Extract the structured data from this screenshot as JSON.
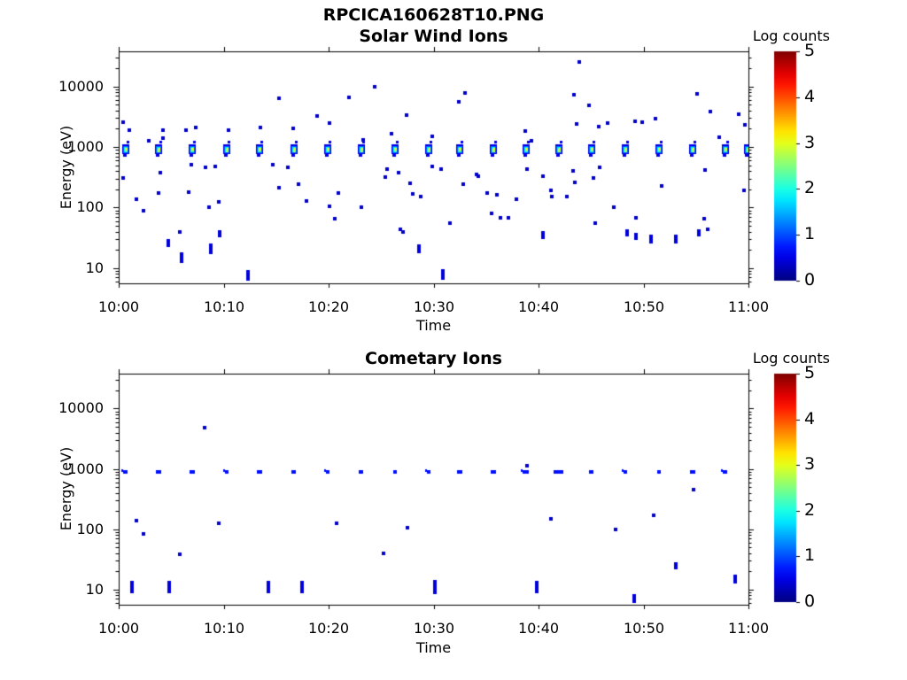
{
  "figure": {
    "title": "RPCICA160628T10.PNG",
    "background": "#ffffff"
  },
  "colors": {
    "frame": "#000000",
    "text": "#000000",
    "dot_default": "#0000c8",
    "colormap_low": "#00007f",
    "colormap_high": "#7f0000"
  },
  "chart_data": [
    {
      "type": "heatmap",
      "title": "Solar Wind Ions",
      "xlabel": "Time",
      "ylabel": "Energy (eV)",
      "xtick_labels": [
        "10:00",
        "10:10",
        "10:20",
        "10:30",
        "10:40",
        "10:50",
        "11:00"
      ],
      "xlim_minutes": [
        0,
        60
      ],
      "ytick_labels": [
        "10",
        "100",
        "1000",
        "10000"
      ],
      "ytick_values": [
        10,
        100,
        1000,
        10000
      ],
      "ylim_eV": [
        5.6,
        38000
      ],
      "yscale": "log",
      "colorbar": {
        "title": "Log counts",
        "tick_labels": [
          "0",
          "1",
          "2",
          "3",
          "4",
          "5"
        ],
        "lim": [
          0,
          5
        ],
        "colormap": "jet"
      },
      "ion_beam_clusters": {
        "comment": "periodic solar-wind proton beam blobs near 1 keV, one per ~3.2 min instrument cycle",
        "energy_eV": 950,
        "core_log_counts": 2.7,
        "halo_log_counts": 0.5,
        "times_min": [
          0.7,
          3.8,
          7.0,
          10.3,
          13.4,
          16.7,
          19.9,
          23.1,
          26.3,
          29.5,
          32.5,
          35.7,
          38.8,
          41.9,
          45.1,
          48.3,
          51.5,
          54.7,
          57.8,
          59.9
        ]
      },
      "scatter_log_counts": 0.35,
      "scatter_points_t_eV": [
        [
          0.4,
          2600
        ],
        [
          1.0,
          1900
        ],
        [
          2.9,
          1250
        ],
        [
          4.2,
          1900
        ],
        [
          4.2,
          1400
        ],
        [
          6.4,
          1900
        ],
        [
          7.3,
          2100
        ],
        [
          10.5,
          1900
        ],
        [
          13.5,
          2100
        ],
        [
          15.3,
          6300
        ],
        [
          16.6,
          2000
        ],
        [
          18.9,
          3300
        ],
        [
          20.1,
          2500
        ],
        [
          21.9,
          6700
        ],
        [
          23.3,
          1300
        ],
        [
          24.4,
          9800
        ],
        [
          26.0,
          1650
        ],
        [
          27.4,
          3400
        ],
        [
          29.9,
          1500
        ],
        [
          32.4,
          5600
        ],
        [
          33.0,
          7900
        ],
        [
          38.7,
          1860
        ],
        [
          39.3,
          1280
        ],
        [
          43.4,
          7400
        ],
        [
          43.6,
          2400
        ],
        [
          43.9,
          25500
        ],
        [
          44.8,
          4900
        ],
        [
          45.7,
          2150
        ],
        [
          46.6,
          2500
        ],
        [
          49.2,
          2700
        ],
        [
          49.9,
          2600
        ],
        [
          51.1,
          2900
        ],
        [
          55.1,
          7600
        ],
        [
          56.4,
          3900
        ],
        [
          57.2,
          1460
        ],
        [
          59.1,
          3500
        ],
        [
          59.7,
          2300
        ],
        [
          0.4,
          310
        ],
        [
          1.7,
          138
        ],
        [
          2.4,
          89
        ],
        [
          3.8,
          175
        ],
        [
          4.0,
          380
        ],
        [
          5.8,
          40
        ],
        [
          6.7,
          180
        ],
        [
          6.9,
          515
        ],
        [
          8.3,
          460
        ],
        [
          8.6,
          100
        ],
        [
          9.2,
          470
        ],
        [
          9.5,
          125
        ],
        [
          14.7,
          505
        ],
        [
          15.3,
          215
        ],
        [
          16.1,
          460
        ],
        [
          17.1,
          245
        ],
        [
          17.9,
          130
        ],
        [
          20.1,
          105
        ],
        [
          20.6,
          65
        ],
        [
          20.9,
          175
        ],
        [
          23.1,
          100
        ],
        [
          25.4,
          320
        ],
        [
          25.6,
          430
        ],
        [
          26.7,
          380
        ],
        [
          26.8,
          43
        ],
        [
          27.1,
          40
        ],
        [
          27.8,
          250
        ],
        [
          28.0,
          170
        ],
        [
          28.8,
          150
        ],
        [
          29.9,
          470
        ],
        [
          30.7,
          430
        ],
        [
          31.6,
          56
        ],
        [
          32.8,
          245
        ],
        [
          34.1,
          350
        ],
        [
          34.3,
          330
        ],
        [
          35.1,
          175
        ],
        [
          35.5,
          80
        ],
        [
          36.0,
          165
        ],
        [
          36.4,
          67
        ],
        [
          37.1,
          67
        ],
        [
          37.9,
          138
        ],
        [
          38.9,
          430
        ],
        [
          40.4,
          330
        ],
        [
          41.2,
          190
        ],
        [
          41.3,
          150
        ],
        [
          42.7,
          150
        ],
        [
          43.3,
          400
        ],
        [
          43.5,
          260
        ],
        [
          45.2,
          310
        ],
        [
          45.4,
          56
        ],
        [
          45.8,
          460
        ],
        [
          47.2,
          103
        ],
        [
          49.3,
          67
        ],
        [
          51.7,
          230
        ],
        [
          55.8,
          65
        ],
        [
          55.9,
          420
        ],
        [
          56.1,
          43
        ],
        [
          59.6,
          190
        ]
      ],
      "vertical_dashes_t_eV_len": [
        [
          4.7,
          26,
          9
        ],
        [
          6.0,
          15,
          12
        ],
        [
          8.8,
          21,
          12
        ],
        [
          9.6,
          37,
          8
        ],
        [
          12.3,
          7.6,
          12
        ],
        [
          28.6,
          21,
          10
        ],
        [
          30.9,
          7.8,
          12
        ],
        [
          40.4,
          35,
          9
        ],
        [
          48.4,
          38,
          8
        ],
        [
          49.3,
          33,
          8
        ],
        [
          50.7,
          30,
          10
        ],
        [
          53.1,
          30,
          10
        ],
        [
          55.3,
          38,
          8
        ]
      ]
    },
    {
      "type": "heatmap",
      "title": "Cometary Ions",
      "xlabel": "Time",
      "ylabel": "Energy (eV)",
      "xtick_labels": [
        "10:00",
        "10:10",
        "10:20",
        "10:30",
        "10:40",
        "10:50",
        "11:00"
      ],
      "xlim_minutes": [
        0,
        60
      ],
      "ytick_labels": [
        "10",
        "100",
        "1000",
        "10000"
      ],
      "ytick_values": [
        10,
        100,
        1000,
        10000
      ],
      "ylim_eV": [
        5.6,
        38000
      ],
      "yscale": "log",
      "colorbar": {
        "title": "Log counts",
        "tick_labels": [
          "0",
          "1",
          "2",
          "3",
          "4",
          "5"
        ],
        "lim": [
          0,
          5
        ],
        "colormap": "jet"
      },
      "band": {
        "comment": "faint ~0.9 keV band, one small mark per ~3.2 min cycle; value = mark width px",
        "energy_eV": 880,
        "log_counts": 0.7,
        "marks_t_w": [
          [
            0.7,
            5
          ],
          [
            3.8,
            6
          ],
          [
            7.0,
            6
          ],
          [
            10.3,
            4
          ],
          [
            13.4,
            6
          ],
          [
            16.7,
            5
          ],
          [
            19.9,
            4
          ],
          [
            23.1,
            5
          ],
          [
            26.3,
            4
          ],
          [
            29.5,
            4
          ],
          [
            32.5,
            6
          ],
          [
            35.7,
            6
          ],
          [
            38.8,
            7
          ],
          [
            41.9,
            11
          ],
          [
            45.1,
            5
          ],
          [
            48.3,
            4
          ],
          [
            51.5,
            4
          ],
          [
            54.7,
            6
          ],
          [
            57.8,
            5
          ]
        ]
      },
      "scatter_log_counts": 0.35,
      "scatter_points_t_eV": [
        [
          1.7,
          138
        ],
        [
          2.4,
          85
        ],
        [
          5.8,
          39
        ],
        [
          8.2,
          4900
        ],
        [
          9.5,
          126
        ],
        [
          20.8,
          126
        ],
        [
          25.2,
          40
        ],
        [
          27.5,
          107
        ],
        [
          38.9,
          1130
        ],
        [
          41.2,
          148
        ],
        [
          47.3,
          98
        ],
        [
          51.0,
          170
        ],
        [
          54.8,
          450
        ]
      ],
      "vertical_dashes_t_eV_len": [
        [
          1.3,
          11,
          14
        ],
        [
          4.8,
          11,
          14
        ],
        [
          14.3,
          11,
          14
        ],
        [
          17.5,
          11,
          14
        ],
        [
          30.1,
          11,
          16
        ],
        [
          39.8,
          11,
          14
        ],
        [
          49.1,
          7,
          10
        ],
        [
          53.1,
          25,
          8
        ],
        [
          58.7,
          15,
          10
        ]
      ]
    }
  ]
}
